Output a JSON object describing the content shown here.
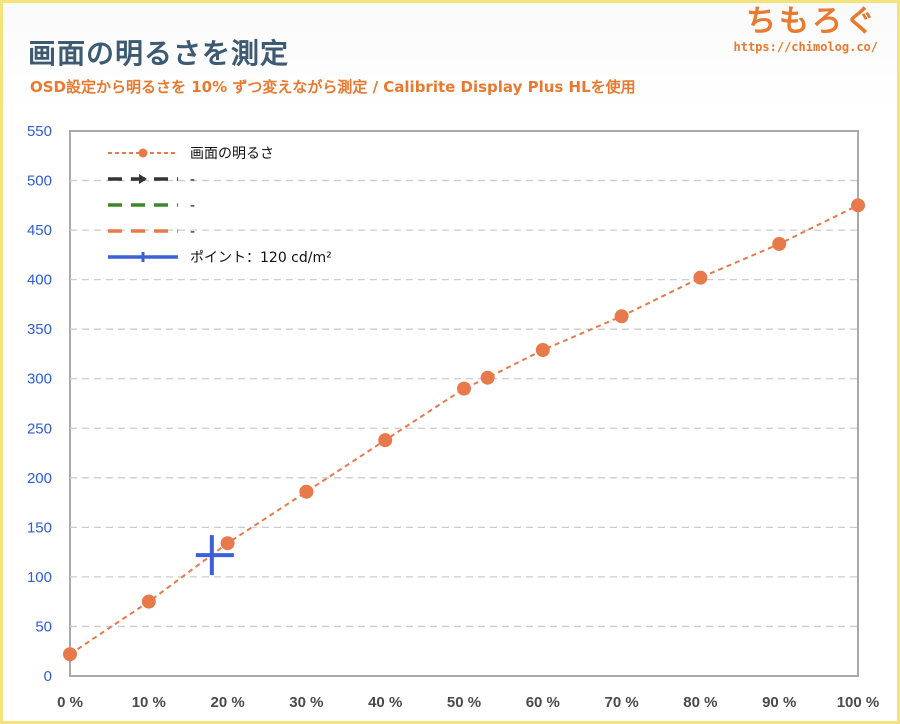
{
  "header": {
    "title": "画面の明るさを測定",
    "subtitle": "OSD設定から明るさを 10% ずつ変えながら測定 / Calibrite Display Plus HLを使用"
  },
  "logo": {
    "text": "ちもろぐ",
    "url": "https://chimolog.co/"
  },
  "colors": {
    "accent": "#e8792f",
    "title": "#3d5a73",
    "series": "#e8794a",
    "point": "#3d5fd9",
    "ytick": "#2f5bd8",
    "grid": "#cccccc"
  },
  "legend": [
    {
      "label": "画面の明るさ",
      "style": "dashed-marker",
      "color": "#e8794a"
    },
    {
      "label": "-",
      "style": "dashed-arrow",
      "color": "#333333"
    },
    {
      "label": "-",
      "style": "dashed",
      "color": "#3a8a2a"
    },
    {
      "label": "-",
      "style": "dashed",
      "color": "#e8794a"
    },
    {
      "label": "ポイント：120 cd/m²",
      "style": "solid-cross",
      "color": "#3d5fd9"
    }
  ],
  "chart_data": {
    "type": "line",
    "title": "画面の明るさを測定",
    "subtitle": "OSD設定から明るさを 10% ずつ変えながら測定 / Calibrite Display Plus HLを使用",
    "xlabel": "",
    "ylabel": "",
    "xlim": [
      0,
      100
    ],
    "ylim": [
      0,
      550
    ],
    "x_ticks": [
      0,
      10,
      20,
      30,
      40,
      50,
      60,
      70,
      80,
      90,
      100
    ],
    "x_tick_labels": [
      "0 %",
      "10 %",
      "20 %",
      "30 %",
      "40 %",
      "50 %",
      "60 %",
      "70 %",
      "80 %",
      "90 %",
      "100 %"
    ],
    "y_ticks": [
      0,
      50,
      100,
      150,
      200,
      250,
      300,
      350,
      400,
      450,
      500,
      550
    ],
    "y_tick_labels": [
      "0",
      "50",
      "100",
      "150",
      "200",
      "250",
      "300",
      "350",
      "400",
      "450",
      "500",
      "550"
    ],
    "grid": "horizontal dashed",
    "legend_position": "top-left",
    "series": [
      {
        "name": "画面の明るさ",
        "x": [
          0,
          10,
          20,
          30,
          40,
          50,
          53,
          60,
          70,
          80,
          90,
          100
        ],
        "y": [
          22,
          75,
          134,
          186,
          238,
          290,
          301,
          329,
          363,
          402,
          436,
          475
        ]
      }
    ],
    "point": {
      "name": "ポイント：120 cd/m²",
      "x": 18,
      "y": 122
    }
  }
}
